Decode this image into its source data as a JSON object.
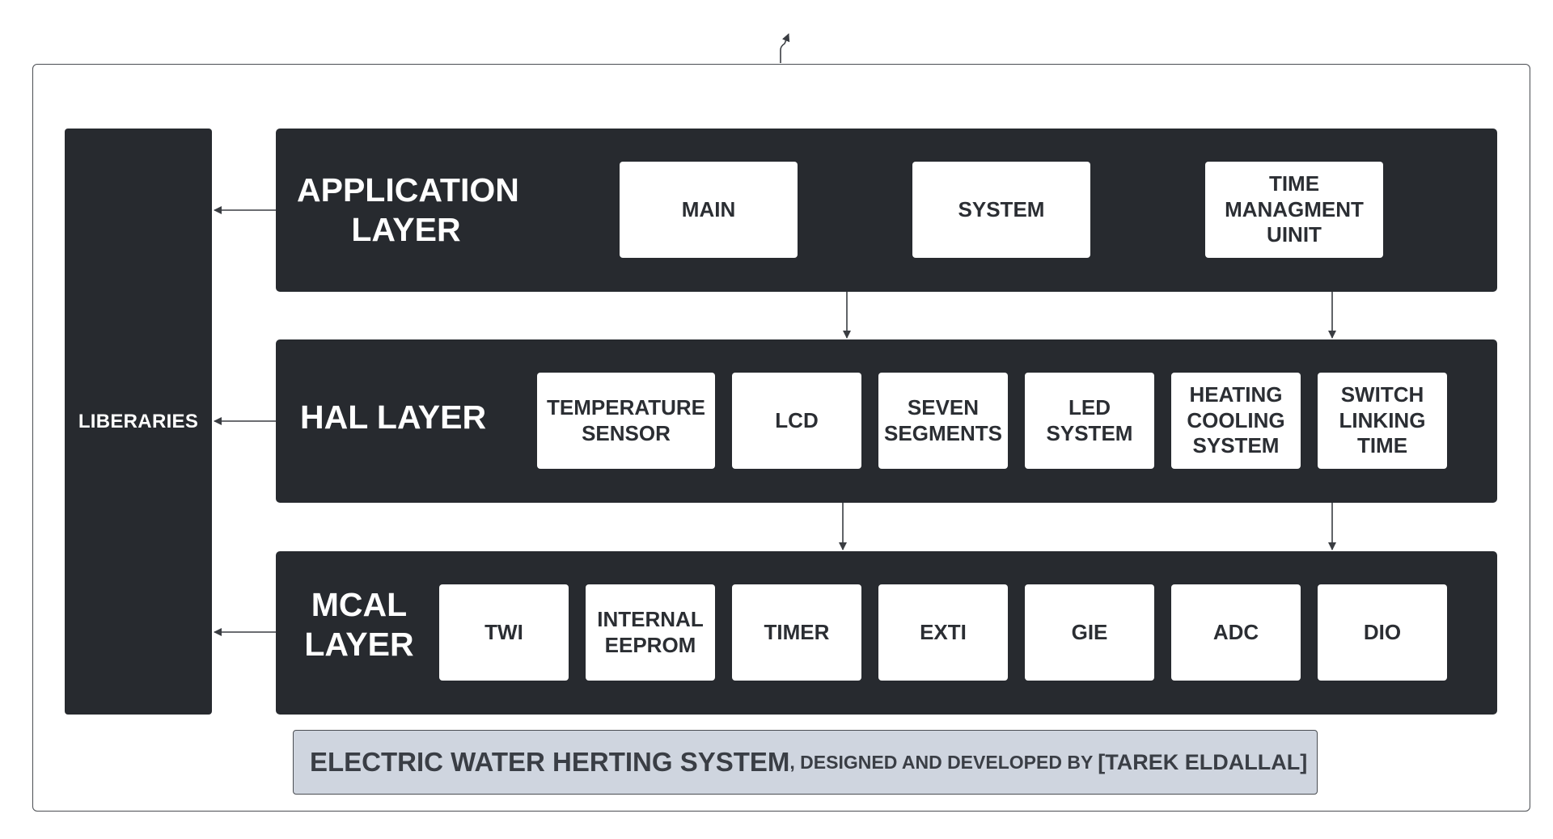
{
  "colors": {
    "layer_fill": "#272a2f",
    "box_fill": "#ffffff",
    "caption_fill": "#cfd5df",
    "arrow": "#3a3d42"
  },
  "libraries": {
    "label": "LIBERARIES"
  },
  "application_layer": {
    "title": "APPLICATION\nLAYER",
    "components": [
      "MAIN",
      "SYSTEM",
      "TIME\nMANAGMENT\nUINIT"
    ]
  },
  "hal_layer": {
    "title": "HAL LAYER",
    "components": [
      "TEMPERATURE\nSENSOR",
      "LCD",
      "SEVEN\nSEGMENTS",
      "LED\nSYSTEM",
      "HEATING\nCOOLING\nSYSTEM",
      "SWITCH\nLINKING\nTIME"
    ]
  },
  "mcal_layer": {
    "title": "MCAL\nLAYER",
    "components": [
      "TWI",
      "INTERNAL\nEEPROM",
      "TIMER",
      "EXTI",
      "GIE",
      "ADC",
      "DIO"
    ]
  },
  "caption": {
    "main": "ELECTRIC WATER HERTING SYSTEM",
    "sub": ", DESIGNED AND DEVELOPED BY ",
    "name": "[TAREK ELDALLAL]"
  }
}
